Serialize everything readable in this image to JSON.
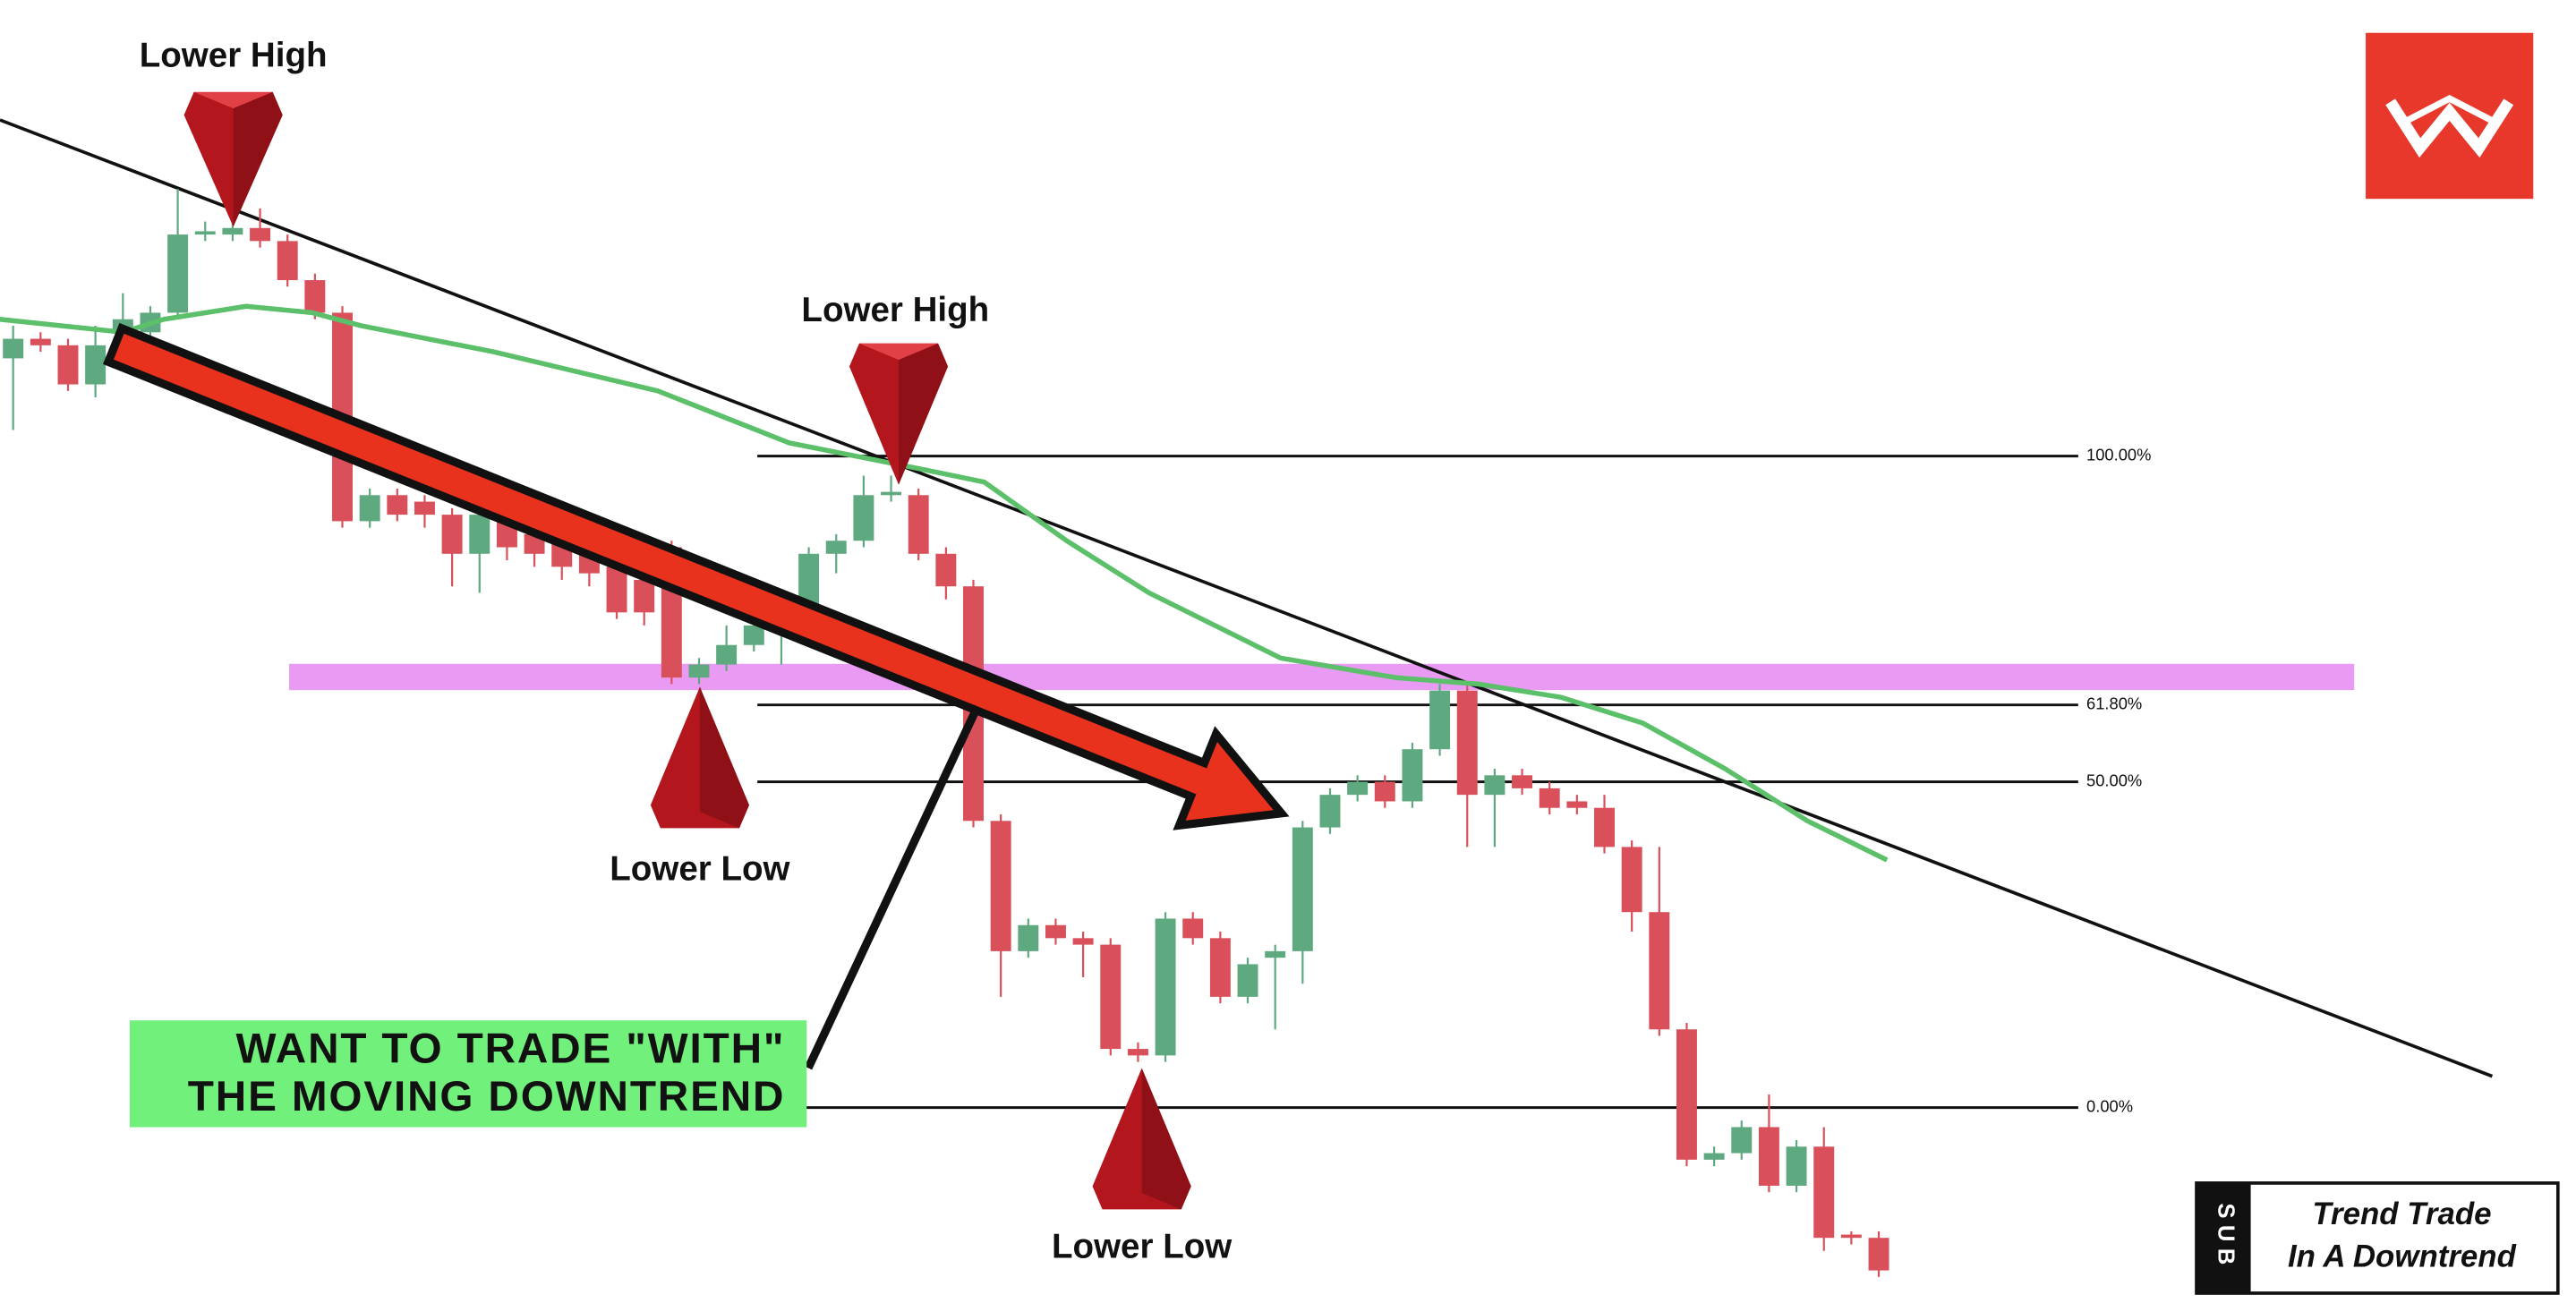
{
  "chart_data": {
    "type": "candlestick",
    "up_color": "#5ea97f",
    "down_color": "#d9505a",
    "ylim": [
      -30,
      170
    ],
    "open": [
      115,
      118,
      117,
      111,
      119,
      119,
      122,
      134,
      134,
      135,
      133,
      127,
      122,
      90,
      94,
      93,
      91,
      85,
      90,
      88,
      87,
      85,
      83,
      81,
      86,
      66,
      68,
      71,
      73,
      76,
      85,
      87,
      94,
      94,
      85,
      80,
      44,
      24,
      28,
      26,
      25,
      9,
      8,
      29,
      26,
      17,
      23,
      24,
      43,
      48,
      50,
      47,
      55,
      64,
      48,
      51,
      49,
      47,
      46,
      40,
      30,
      12,
      -8,
      -7,
      -3,
      -12,
      -6,
      -19.5,
      -20
    ],
    "high": [
      120,
      119,
      118,
      120,
      125,
      123,
      141,
      136,
      137,
      138,
      134,
      128,
      123,
      95,
      95,
      94,
      92,
      92,
      91,
      89,
      88,
      86,
      84,
      83,
      87,
      69,
      74,
      75,
      78,
      86,
      88,
      97,
      97,
      95,
      86,
      81,
      45,
      29,
      29,
      27,
      26,
      10,
      30,
      30,
      27,
      23,
      25,
      44,
      49,
      51,
      51,
      56,
      65,
      65,
      52,
      52,
      50,
      48,
      48,
      41,
      40,
      13,
      -6,
      -2,
      2,
      -5,
      -3,
      -19,
      -19
    ],
    "low": [
      104,
      116,
      110,
      109,
      118,
      118,
      121,
      133,
      133,
      132,
      126,
      121,
      89,
      89,
      90,
      89,
      80,
      79,
      84,
      83,
      81,
      80,
      75,
      74,
      65,
      65,
      67,
      70,
      68,
      75,
      82,
      86,
      93,
      84,
      78,
      43,
      17,
      23,
      25,
      20,
      8,
      7,
      7,
      25,
      16,
      16,
      12,
      19,
      42,
      47,
      46,
      46,
      54,
      40,
      40,
      48,
      45,
      45,
      39,
      27,
      11,
      -9,
      -9,
      -8,
      -13,
      -13,
      -22,
      -21,
      -26
    ],
    "close": [
      118,
      117,
      111,
      117,
      121,
      122,
      134,
      134.5,
      135,
      133,
      127,
      122,
      90,
      94,
      91,
      91,
      85,
      91,
      86,
      85,
      83,
      82,
      76,
      76,
      66,
      68,
      71,
      74,
      76,
      85,
      87,
      94,
      94.5,
      85,
      80,
      44,
      24,
      28,
      26,
      25,
      9,
      8,
      29,
      26,
      17,
      22,
      24,
      43,
      48,
      50,
      47,
      55,
      64,
      48,
      51,
      49,
      46,
      46,
      40,
      30,
      12,
      -8,
      -7,
      -3,
      -12,
      -6,
      -20,
      -20,
      -25
    ],
    "moving_average": {
      "color": "#5cbf6a",
      "x": [
        -0.5,
        4,
        5.5,
        8.5,
        10.9,
        12.7,
        17.5,
        23.5,
        28.3,
        33.1,
        35.4,
        38.4,
        41.4,
        46.2,
        50.4,
        53.4,
        56.4,
        59.4,
        62.4,
        65.4,
        68.3
      ],
      "values": [
        121,
        119,
        121,
        123,
        122,
        120,
        116,
        110,
        102,
        98,
        96,
        87,
        79,
        69,
        66,
        65,
        63,
        59,
        52,
        44,
        38
      ]
    },
    "fib_levels": [
      {
        "value": 100,
        "label": "100.00%"
      },
      {
        "value": 61.8,
        "label": "61.80%"
      },
      {
        "value": 50,
        "label": "50.00%"
      },
      {
        "value": 0,
        "label": "0.00%"
      }
    ],
    "annotations": [
      "Lower High",
      "Lower High",
      "Lower Low",
      "Lower Low"
    ],
    "callout": [
      "WANT TO TRADE \"WITH\"",
      "THE MOVING DOWNTREND"
    ],
    "badge": "SUB",
    "caption": [
      "Trend Trade",
      "In A Downtrend"
    ]
  }
}
